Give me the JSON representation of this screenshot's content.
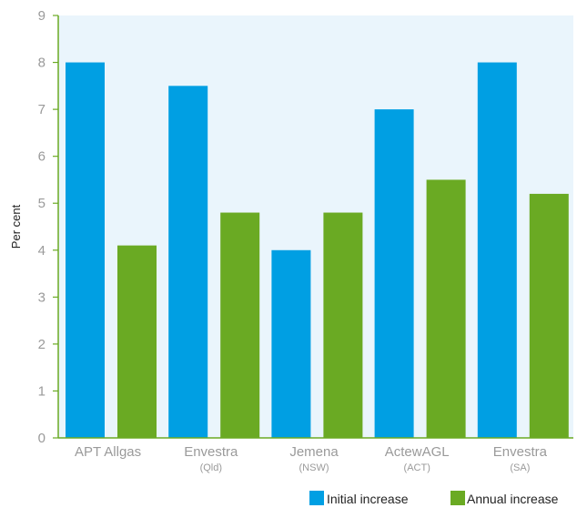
{
  "chart_data": {
    "type": "bar",
    "title": "",
    "xlabel": "",
    "ylabel": "Per cent",
    "ylim": [
      0,
      9
    ],
    "yticks": [
      "0",
      "1",
      "2",
      "3",
      "4",
      "5",
      "6",
      "7",
      "8",
      "9"
    ],
    "grid": false,
    "legend_position": "bottom-right",
    "categories": [
      {
        "name": "APT Allgas",
        "sub": ""
      },
      {
        "name": "Envestra",
        "sub": "(Qld)"
      },
      {
        "name": "Jemena",
        "sub": "(NSW)"
      },
      {
        "name": "ActewAGL",
        "sub": "(ACT)"
      },
      {
        "name": "Envestra",
        "sub": "(SA)"
      }
    ],
    "series": [
      {
        "name": "Initial increase",
        "color": "#009fe3",
        "values": [
          8,
          7.5,
          4,
          7,
          8
        ]
      },
      {
        "name": "Annual increase",
        "color": "#6aaa23",
        "values": [
          4.1,
          4.8,
          4.8,
          5.5,
          5.2
        ]
      }
    ],
    "plot_background": "#eaf5fc",
    "axis_color": "#6aaa23"
  }
}
